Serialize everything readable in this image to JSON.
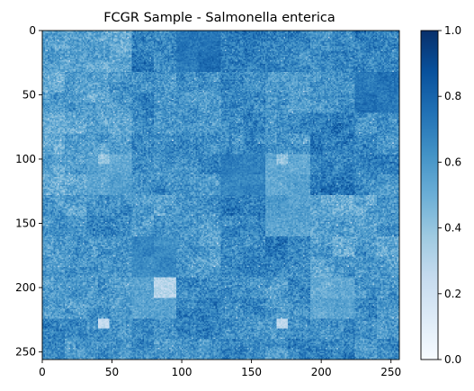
{
  "chart_data": {
    "type": "heatmap",
    "title": "FCGR Sample - Salmonella enterica",
    "xlabel": "",
    "ylabel": "",
    "grid_size": [
      256,
      256
    ],
    "xlim": [
      0,
      256
    ],
    "ylim": [
      256,
      0
    ],
    "x_ticks": [
      0,
      50,
      100,
      150,
      200,
      250
    ],
    "y_ticks": [
      0,
      50,
      100,
      150,
      200,
      250
    ],
    "colormap": "Blues",
    "color_range": [
      0.0,
      1.0
    ],
    "colorbar": {
      "placement": "right",
      "ticks": [
        "0.0",
        "0.2",
        "0.4",
        "0.6",
        "0.8",
        "1.0"
      ],
      "tick_values": [
        0.0,
        0.2,
        0.4,
        0.6,
        0.8,
        1.0
      ]
    },
    "typical_value": 0.62,
    "light_patches": [
      {
        "x": [
          80,
          96
        ],
        "y": [
          192,
          208
        ],
        "value": 0.12
      },
      {
        "x": [
          40,
          48
        ],
        "y": [
          96,
          104
        ],
        "value": 0.25
      },
      {
        "x": [
          168,
          176
        ],
        "y": [
          96,
          104
        ],
        "value": 0.25
      },
      {
        "x": [
          40,
          48
        ],
        "y": [
          224,
          232
        ],
        "value": 0.25
      },
      {
        "x": [
          168,
          176
        ],
        "y": [
          224,
          232
        ],
        "value": 0.28
      },
      {
        "x": [
          160,
          192
        ],
        "y": [
          128,
          160
        ],
        "value": 0.45
      },
      {
        "x": [
          64,
          96
        ],
        "y": [
          192,
          224
        ],
        "value": 0.45
      },
      {
        "x": [
          192,
          224
        ],
        "y": [
          192,
          224
        ],
        "value": 0.45
      },
      {
        "x": [
          32,
          64
        ],
        "y": [
          96,
          128
        ],
        "value": 0.5
      },
      {
        "x": [
          160,
          192
        ],
        "y": [
          96,
          128
        ],
        "value": 0.5
      }
    ],
    "dark_patches": [
      {
        "x": [
          96,
          128
        ],
        "y": [
          0,
          32
        ],
        "value": 0.8
      },
      {
        "x": [
          224,
          256
        ],
        "y": [
          32,
          64
        ],
        "value": 0.8
      },
      {
        "x": [
          128,
          160
        ],
        "y": [
          96,
          128
        ],
        "value": 0.78
      },
      {
        "x": [
          64,
          96
        ],
        "y": [
          160,
          192
        ],
        "value": 0.76
      }
    ]
  }
}
